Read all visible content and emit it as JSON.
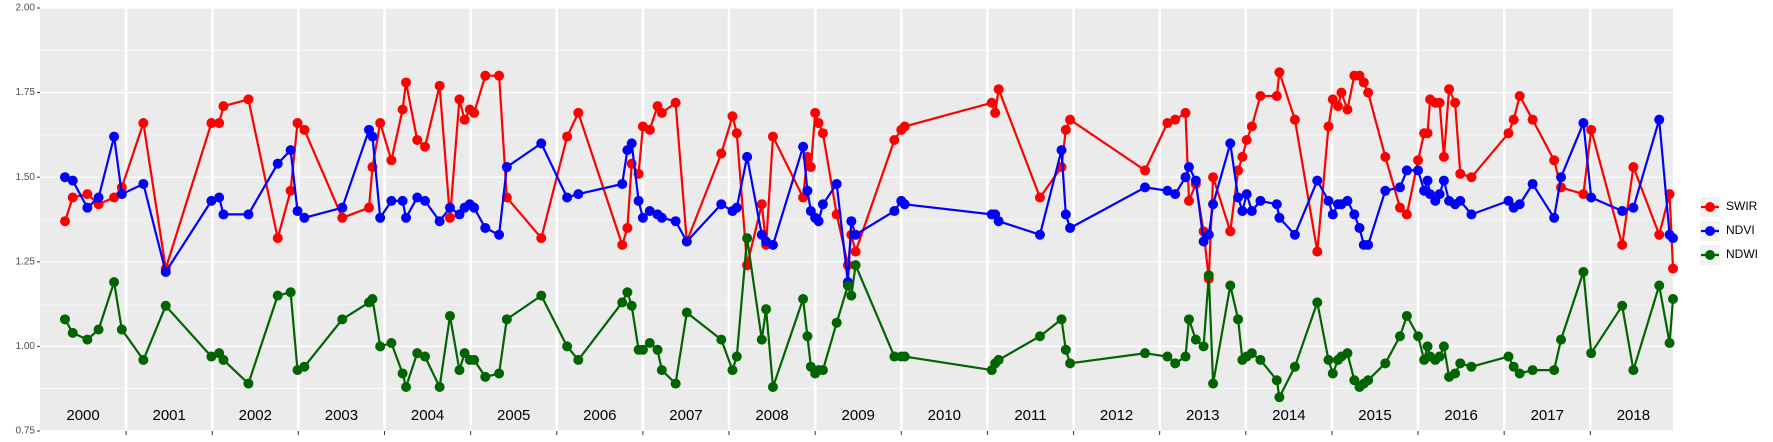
{
  "chart_data": {
    "type": "line",
    "x": [
      2000.29,
      2000.38,
      2000.55,
      2000.68,
      2000.86,
      2000.95,
      2001.2,
      2001.46,
      2001.99,
      2002.08,
      2002.13,
      2002.42,
      2002.76,
      2002.91,
      2002.99,
      2003.07,
      2003.51,
      2003.82,
      2003.86,
      2003.95,
      2004.08,
      2004.21,
      2004.25,
      2004.38,
      2004.47,
      2004.64,
      2004.76,
      2004.87,
      2004.93,
      2004.99,
      2005.04,
      2005.17,
      2005.33,
      2005.42,
      2005.82,
      2006.12,
      2006.25,
      2006.76,
      2006.82,
      2006.87,
      2006.95,
      2007,
      2007.08,
      2007.17,
      2007.22,
      2007.38,
      2007.51,
      2007.91,
      2008.04,
      2008.09,
      2008.21,
      2008.38,
      2008.43,
      2008.51,
      2008.86,
      2008.91,
      2008.95,
      2009,
      2009.04,
      2009.09,
      2009.25,
      2009.38,
      2009.42,
      2009.47,
      2009.92,
      2010,
      2010.04,
      2011.05,
      2011.09,
      2011.13,
      2011.61,
      2011.86,
      2011.91,
      2011.96,
      2012.83,
      2013.09,
      2013.18,
      2013.3,
      2013.34,
      2013.42,
      2013.51,
      2013.57,
      2013.62,
      2013.82,
      2013.91,
      2013.96,
      2014.01,
      2014.07,
      2014.17,
      2014.36,
      2014.39,
      2014.57,
      2014.83,
      2014.96,
      2015.01,
      2015.07,
      2015.11,
      2015.18,
      2015.26,
      2015.32,
      2015.37,
      2015.42,
      2015.62,
      2015.79,
      2015.87,
      2016,
      2016.07,
      2016.11,
      2016.14,
      2016.2,
      2016.25,
      2016.3,
      2016.36,
      2016.43,
      2016.49,
      2016.62,
      2017.05,
      2017.11,
      2017.18,
      2017.33,
      2017.58,
      2017.66,
      2017.92,
      2018.01,
      2018.37,
      2018.5,
      2018.8,
      2018.92,
      2018.96
    ],
    "series": [
      {
        "name": "SWIR",
        "color": "#ff0000",
        "values": [
          1.37,
          1.44,
          1.45,
          1.42,
          1.44,
          1.47,
          1.66,
          1.23,
          1.66,
          1.66,
          1.71,
          1.73,
          1.32,
          1.46,
          1.66,
          1.64,
          1.38,
          1.41,
          1.53,
          1.66,
          1.55,
          1.7,
          1.78,
          1.61,
          1.59,
          1.77,
          1.38,
          1.73,
          1.67,
          1.7,
          1.69,
          1.8,
          1.8,
          1.44,
          1.32,
          1.62,
          1.69,
          1.3,
          1.35,
          1.54,
          1.51,
          1.65,
          1.64,
          1.71,
          1.69,
          1.72,
          1.31,
          1.57,
          1.68,
          1.63,
          1.24,
          1.42,
          1.3,
          1.62,
          1.44,
          1.56,
          1.53,
          1.69,
          1.66,
          1.63,
          1.39,
          1.24,
          1.33,
          1.28,
          1.61,
          1.64,
          1.65,
          1.72,
          1.69,
          1.76,
          1.44,
          1.53,
          1.64,
          1.67,
          1.52,
          1.66,
          1.67,
          1.69,
          1.43,
          1.48,
          1.34,
          1.2,
          1.5,
          1.34,
          1.52,
          1.56,
          1.61,
          1.65,
          1.74,
          1.74,
          1.81,
          1.67,
          1.28,
          1.65,
          1.73,
          1.71,
          1.75,
          1.7,
          1.8,
          1.8,
          1.78,
          1.75,
          1.56,
          1.41,
          1.39,
          1.55,
          1.63,
          1.63,
          1.73,
          1.72,
          1.72,
          1.56,
          1.76,
          1.72,
          1.51,
          1.5,
          1.63,
          1.67,
          1.74,
          1.67,
          1.55,
          1.47,
          1.45,
          1.64,
          1.3,
          1.53,
          1.33,
          1.45,
          1.23
        ]
      },
      {
        "name": "NDVI",
        "color": "#0000ff",
        "values": [
          1.5,
          1.49,
          1.41,
          1.44,
          1.62,
          1.45,
          1.48,
          1.22,
          1.43,
          1.44,
          1.39,
          1.39,
          1.54,
          1.58,
          1.4,
          1.38,
          1.41,
          1.64,
          1.62,
          1.38,
          1.43,
          1.43,
          1.38,
          1.44,
          1.43,
          1.37,
          1.41,
          1.39,
          1.41,
          1.42,
          1.41,
          1.35,
          1.33,
          1.53,
          1.6,
          1.44,
          1.45,
          1.48,
          1.58,
          1.6,
          1.43,
          1.38,
          1.4,
          1.39,
          1.38,
          1.37,
          1.31,
          1.42,
          1.4,
          1.41,
          1.56,
          1.33,
          1.31,
          1.3,
          1.59,
          1.46,
          1.4,
          1.38,
          1.37,
          1.42,
          1.48,
          1.19,
          1.37,
          1.33,
          1.4,
          1.43,
          1.42,
          1.39,
          1.39,
          1.37,
          1.33,
          1.58,
          1.39,
          1.35,
          1.47,
          1.46,
          1.45,
          1.5,
          1.53,
          1.49,
          1.31,
          1.33,
          1.42,
          1.6,
          1.44,
          1.4,
          1.45,
          1.4,
          1.43,
          1.42,
          1.38,
          1.33,
          1.49,
          1.43,
          1.39,
          1.42,
          1.42,
          1.43,
          1.39,
          1.35,
          1.3,
          1.3,
          1.46,
          1.47,
          1.52,
          1.52,
          1.46,
          1.49,
          1.45,
          1.43,
          1.45,
          1.49,
          1.43,
          1.42,
          1.43,
          1.39,
          1.43,
          1.41,
          1.42,
          1.48,
          1.38,
          1.5,
          1.66,
          1.44,
          1.4,
          1.41,
          1.67,
          1.33,
          1.32
        ]
      },
      {
        "name": "NDWI",
        "color": "#006400",
        "values": [
          1.08,
          1.04,
          1.02,
          1.05,
          1.19,
          1.05,
          0.96,
          1.12,
          0.97,
          0.98,
          0.96,
          0.89,
          1.15,
          1.16,
          0.93,
          0.94,
          1.08,
          1.13,
          1.14,
          1.0,
          1.01,
          0.92,
          0.88,
          0.98,
          0.97,
          0.88,
          1.09,
          0.93,
          0.98,
          0.96,
          0.96,
          0.91,
          0.92,
          1.08,
          1.15,
          1.0,
          0.96,
          1.13,
          1.16,
          1.12,
          0.99,
          0.99,
          1.01,
          0.99,
          0.93,
          0.89,
          1.1,
          1.02,
          0.93,
          0.97,
          1.32,
          1.02,
          1.11,
          0.88,
          1.14,
          1.03,
          0.94,
          0.92,
          0.93,
          0.93,
          1.07,
          1.18,
          1.15,
          1.24,
          0.97,
          0.97,
          0.97,
          0.93,
          0.95,
          0.96,
          1.03,
          1.08,
          0.99,
          0.95,
          0.98,
          0.97,
          0.95,
          0.97,
          1.08,
          1.02,
          1.0,
          1.21,
          0.89,
          1.18,
          1.08,
          0.96,
          0.97,
          0.98,
          0.96,
          0.9,
          0.85,
          0.94,
          1.13,
          0.96,
          0.92,
          0.96,
          0.97,
          0.98,
          0.9,
          0.88,
          0.89,
          0.9,
          0.95,
          1.03,
          1.09,
          1.03,
          0.96,
          1.0,
          0.97,
          0.96,
          0.97,
          1.0,
          0.91,
          0.92,
          0.95,
          0.94,
          0.97,
          0.94,
          0.92,
          0.93,
          0.93,
          1.02,
          1.22,
          0.98,
          1.12,
          0.93,
          1.18,
          1.01,
          1.14
        ]
      }
    ],
    "xlim": [
      2000,
      2018.96
    ],
    "xticks": [
      {
        "value": 2000.5,
        "label": "2000"
      },
      {
        "value": 2001.5,
        "label": "2001"
      },
      {
        "value": 2002.5,
        "label": "2002"
      },
      {
        "value": 2003.5,
        "label": "2003"
      },
      {
        "value": 2004.5,
        "label": "2004"
      },
      {
        "value": 2005.5,
        "label": "2005"
      },
      {
        "value": 2006.5,
        "label": "2006"
      },
      {
        "value": 2007.5,
        "label": "2007"
      },
      {
        "value": 2008.5,
        "label": "2008"
      },
      {
        "value": 2009.5,
        "label": "2009"
      },
      {
        "value": 2010.5,
        "label": "2010"
      },
      {
        "value": 2011.5,
        "label": "2011"
      },
      {
        "value": 2012.5,
        "label": "2012"
      },
      {
        "value": 2013.5,
        "label": "2013"
      },
      {
        "value": 2014.5,
        "label": "2014"
      },
      {
        "value": 2015.5,
        "label": "2015"
      },
      {
        "value": 2016.5,
        "label": "2016"
      },
      {
        "value": 2017.5,
        "label": "2017"
      },
      {
        "value": 2018.5,
        "label": "2018"
      }
    ],
    "ylim": [
      0.75,
      2.0
    ],
    "yticks": [
      0.75,
      {
        "value": 1,
        "label": "1.00"
      },
      1.25,
      {
        "value": 1.5,
        "label": "1.50"
      },
      1.75,
      {
        "value": 2,
        "label": "2.00"
      }
    ],
    "grid": true,
    "legend": "right"
  }
}
